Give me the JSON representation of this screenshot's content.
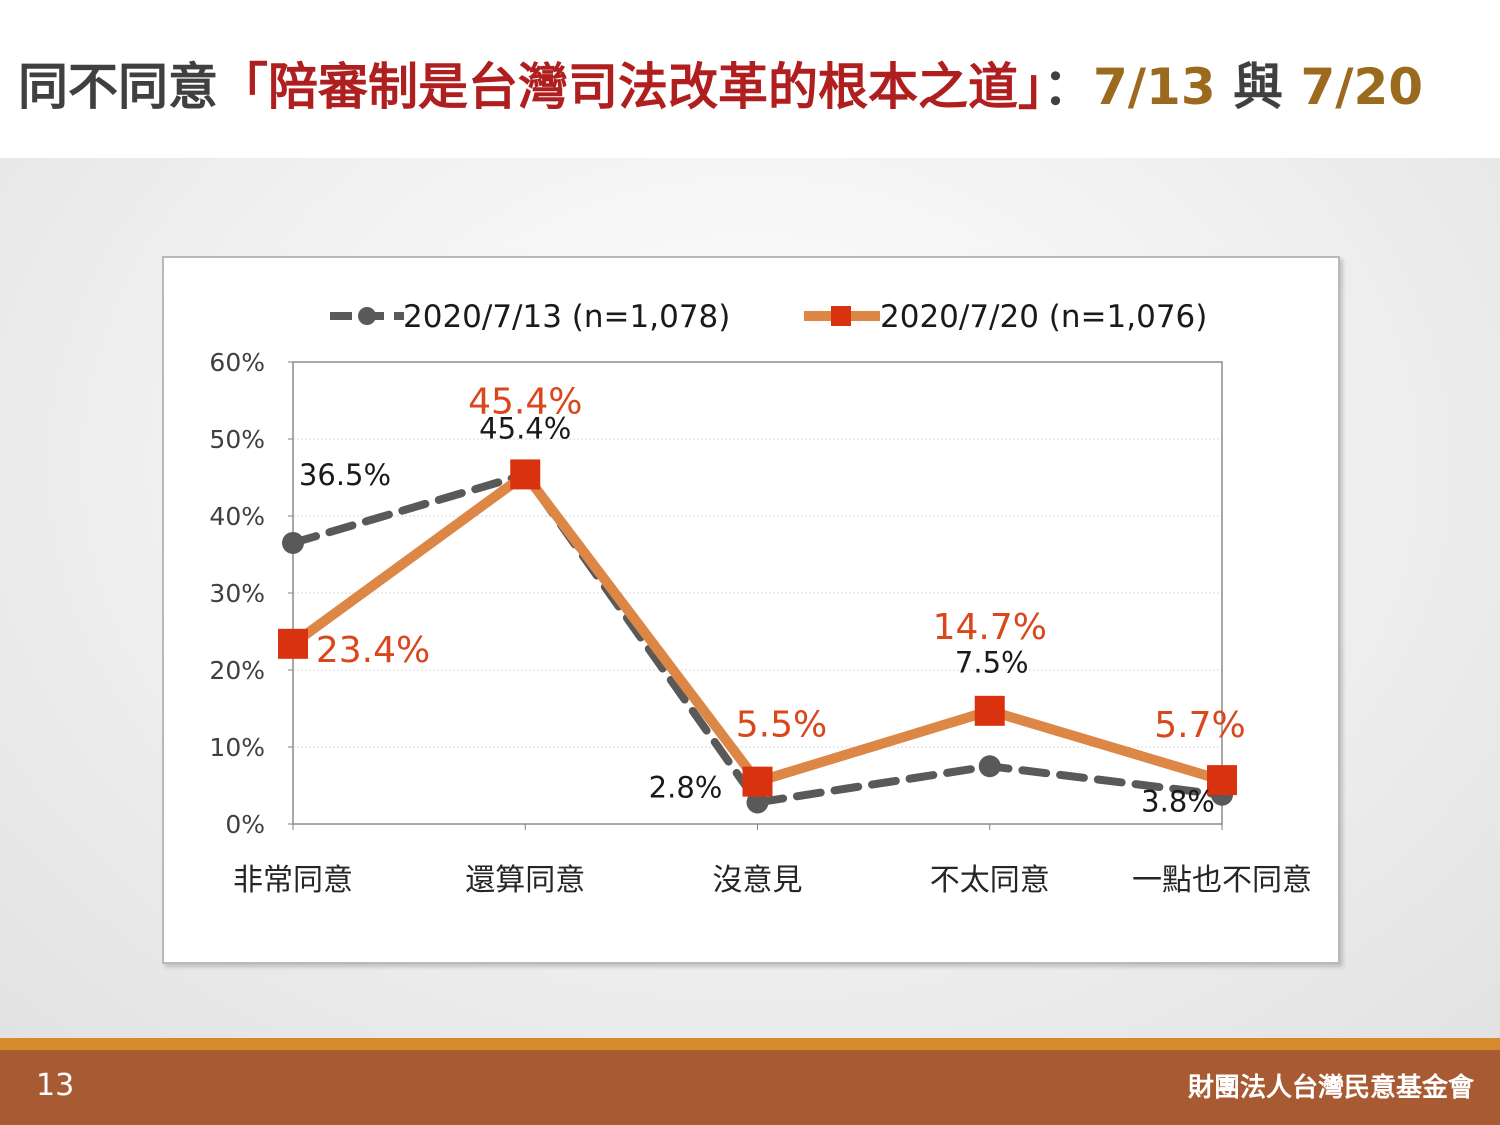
{
  "header": {
    "title_prefix": "同不同意",
    "title_quote": "「陪審制是台灣司法改革的根本之道」",
    "title_colon": "：",
    "title_date1": "7/13",
    "title_and": " 與 ",
    "title_date2": "7/20"
  },
  "footer": {
    "page_number": "13",
    "organization": "財團法人台灣民意基金會"
  },
  "colors": {
    "series1": "#595959",
    "series2_line": "#dd8746",
    "series2_marker": "#d9320f",
    "series2_label": "#d9481c",
    "title_red": "#b01f1f",
    "title_gold": "#9c6a1e",
    "footer_bg": "#a85a33",
    "footer_accent": "#d68a2c"
  },
  "chart_data": {
    "type": "line",
    "title": "",
    "xlabel": "",
    "ylabel": "",
    "categories": [
      "非常同意",
      "還算同意",
      "沒意見",
      "不太同意",
      "一點也不同意"
    ],
    "ylim": [
      0,
      60
    ],
    "yticks": [
      "0%",
      "10%",
      "20%",
      "30%",
      "40%",
      "50%",
      "60%"
    ],
    "grid": true,
    "legend_position": "top",
    "series": [
      {
        "name": "2020/7/13 (n=1,078)",
        "values": [
          36.5,
          45.4,
          2.8,
          7.5,
          3.8
        ],
        "labels": [
          "36.5%",
          "45.4%",
          "2.8%",
          "7.5%",
          "3.8%"
        ],
        "style": "dashed",
        "marker": "circle"
      },
      {
        "name": "2020/7/20 (n=1,076)",
        "values": [
          23.4,
          45.4,
          5.5,
          14.7,
          5.7
        ],
        "labels": [
          "23.4%",
          "45.4%",
          "5.5%",
          "14.7%",
          "5.7%"
        ],
        "style": "solid",
        "marker": "square"
      }
    ]
  }
}
